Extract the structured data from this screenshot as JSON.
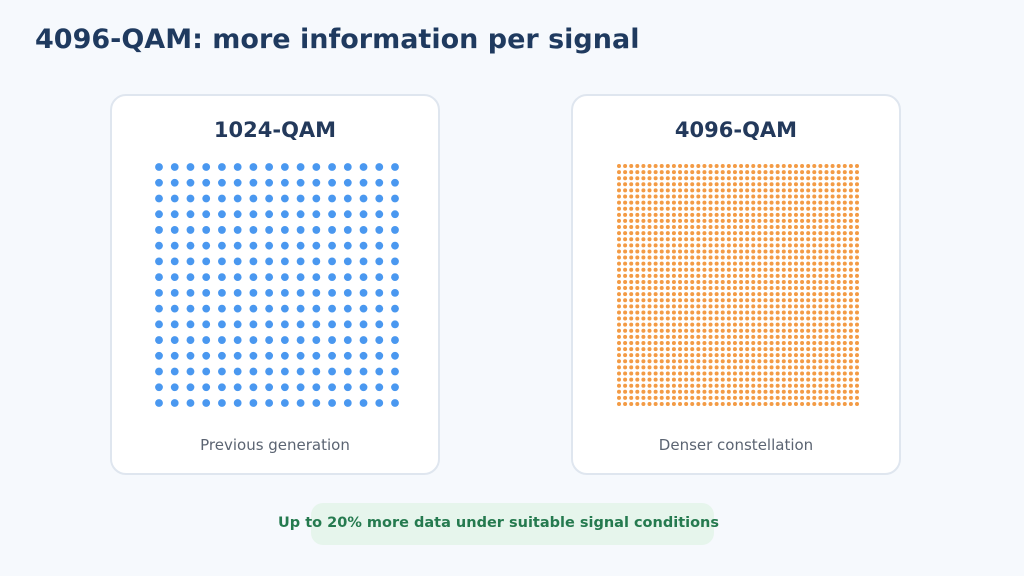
{
  "title": "4096-QAM: more information per signal",
  "panels": [
    {
      "label": "1024-QAM",
      "caption": "Previous generation",
      "points_per_side": 16,
      "color": "#4a98f0"
    },
    {
      "label": "4096-QAM",
      "caption": "Denser constellation",
      "points_per_side": 40,
      "color": "#f39b45"
    }
  ],
  "footer_note": "Up to 20% more data under suitable signal conditions"
}
